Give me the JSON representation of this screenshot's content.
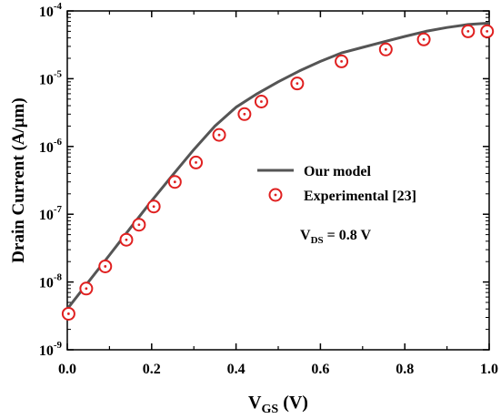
{
  "chart_data": {
    "type": "line",
    "title": "",
    "xlabel": {
      "main": "V",
      "sub": "GS",
      "suffix": " (V)"
    },
    "ylabel": "Drain Current (A/μm)",
    "xlim": [
      0.0,
      1.0
    ],
    "ylim": [
      1e-09,
      0.0001
    ],
    "y_scale": "log",
    "x_ticks": [
      "0.0",
      "0.2",
      "0.4",
      "0.6",
      "0.8",
      "1.0"
    ],
    "x_tick_values": [
      0.0,
      0.2,
      0.4,
      0.6,
      0.8,
      1.0
    ],
    "y_ticks": [
      {
        "base": "10",
        "exp": "-9",
        "value": 1e-09
      },
      {
        "base": "10",
        "exp": "-8",
        "value": 1e-08
      },
      {
        "base": "10",
        "exp": "-7",
        "value": 1e-07
      },
      {
        "base": "10",
        "exp": "-6",
        "value": 1e-06
      },
      {
        "base": "10",
        "exp": "-5",
        "value": 1e-05
      },
      {
        "base": "10",
        "exp": "-4",
        "value": 0.0001
      }
    ],
    "grid": false,
    "legend_position": "center-right",
    "annotation": {
      "main": "V",
      "sub": "DS",
      "suffix": " = 0.8 V"
    },
    "series": [
      {
        "name": "Our model",
        "style": "line",
        "color": "#555555",
        "x": [
          0.0,
          0.05,
          0.1,
          0.15,
          0.2,
          0.25,
          0.3,
          0.35,
          0.4,
          0.45,
          0.5,
          0.55,
          0.6,
          0.65,
          0.7,
          0.75,
          0.8,
          0.85,
          0.9,
          0.95,
          1.0
        ],
        "y": [
          4e-09,
          1e-08,
          2.5e-08,
          6.3e-08,
          1.58e-07,
          3.8e-07,
          9e-07,
          2e-06,
          3.8e-06,
          6e-06,
          9e-06,
          1.3e-05,
          1.8e-05,
          2.4e-05,
          2.9e-05,
          3.5e-05,
          4.2e-05,
          5e-05,
          5.7e-05,
          6.3e-05,
          6.6e-05
        ]
      },
      {
        "name": "Experimental [23]",
        "style": "marker",
        "color": "#e02020",
        "x": [
          0.003,
          0.045,
          0.09,
          0.14,
          0.17,
          0.205,
          0.255,
          0.305,
          0.36,
          0.42,
          0.46,
          0.545,
          0.65,
          0.755,
          0.845,
          0.95,
          0.995
        ],
        "y": [
          3.4e-09,
          8e-09,
          1.7e-08,
          4.2e-08,
          7e-08,
          1.3e-07,
          3e-07,
          5.8e-07,
          1.48e-06,
          3e-06,
          4.6e-06,
          8.5e-06,
          1.8e-05,
          2.7e-05,
          3.8e-05,
          5e-05,
          5e-05
        ]
      }
    ]
  }
}
